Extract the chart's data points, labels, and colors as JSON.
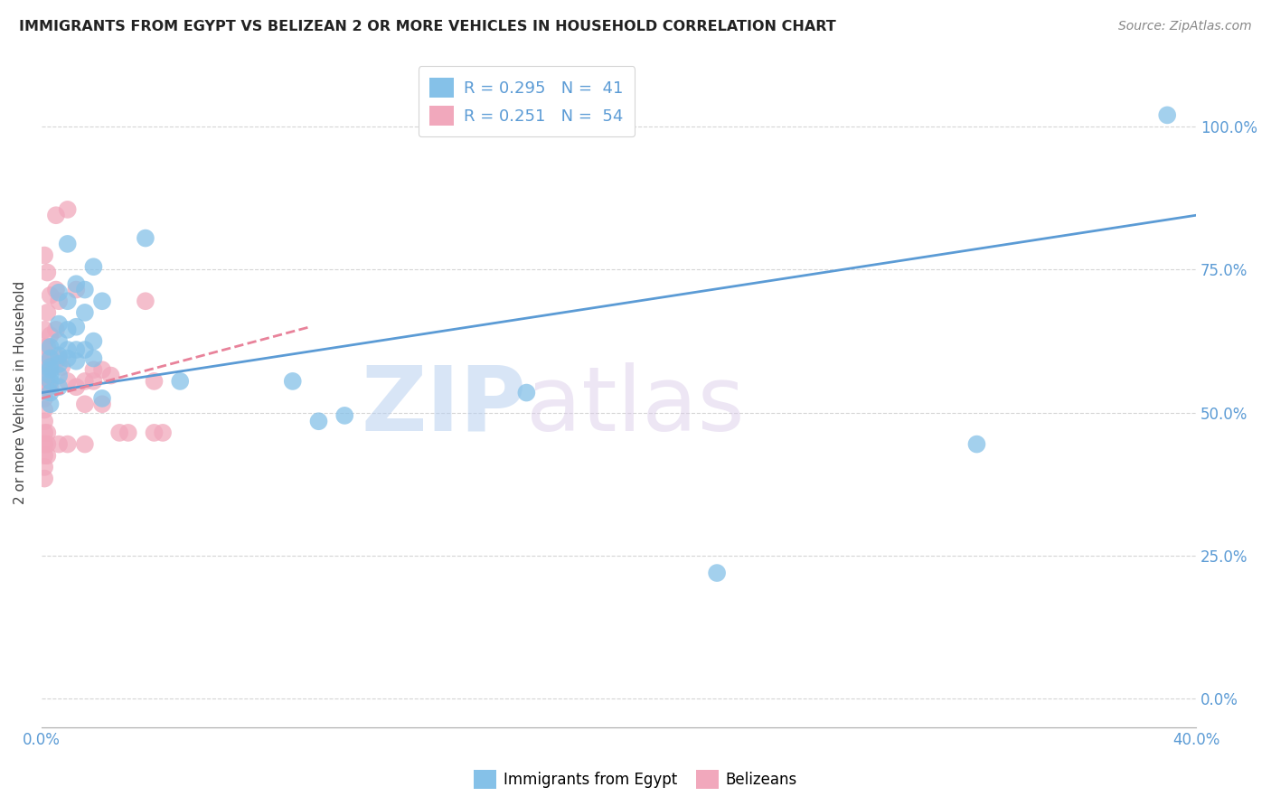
{
  "title": "IMMIGRANTS FROM EGYPT VS BELIZEAN 2 OR MORE VEHICLES IN HOUSEHOLD CORRELATION CHART",
  "source": "Source: ZipAtlas.com",
  "ylabel": "2 or more Vehicles in Household",
  "xlim": [
    0.0,
    0.4
  ],
  "ylim": [
    -0.05,
    1.12
  ],
  "ytick_values": [
    0.0,
    0.25,
    0.5,
    0.75,
    1.0
  ],
  "ytick_labels": [
    "0.0%",
    "25.0%",
    "50.0%",
    "75.0%",
    "100.0%"
  ],
  "xtick_values": [
    0.0,
    0.4
  ],
  "xtick_labels": [
    "0.0%",
    "40.0%"
  ],
  "color_blue": "#85C1E8",
  "color_pink": "#F1A8BC",
  "color_blue_line": "#5B9BD5",
  "color_pink_line": "#E8829A",
  "watermark_zip": "ZIP",
  "watermark_atlas": "atlas",
  "grid_color": "#D5D5D5",
  "background_color": "#FFFFFF",
  "tick_color": "#5B9BD5",
  "legend1_label": "R = 0.295   N =  41",
  "legend2_label": "R = 0.251   N =  54",
  "bottom_legend1": "Immigrants from Egypt",
  "bottom_legend2": "Belizeans",
  "blue_scatter": [
    [
      0.003,
      0.615
    ],
    [
      0.003,
      0.595
    ],
    [
      0.003,
      0.575
    ],
    [
      0.003,
      0.555
    ],
    [
      0.003,
      0.535
    ],
    [
      0.003,
      0.515
    ],
    [
      0.003,
      0.58
    ],
    [
      0.003,
      0.565
    ],
    [
      0.006,
      0.71
    ],
    [
      0.006,
      0.655
    ],
    [
      0.006,
      0.625
    ],
    [
      0.006,
      0.6
    ],
    [
      0.006,
      0.585
    ],
    [
      0.006,
      0.565
    ],
    [
      0.006,
      0.545
    ],
    [
      0.009,
      0.795
    ],
    [
      0.009,
      0.695
    ],
    [
      0.009,
      0.645
    ],
    [
      0.009,
      0.61
    ],
    [
      0.009,
      0.595
    ],
    [
      0.012,
      0.725
    ],
    [
      0.012,
      0.65
    ],
    [
      0.012,
      0.61
    ],
    [
      0.012,
      0.59
    ],
    [
      0.015,
      0.715
    ],
    [
      0.015,
      0.675
    ],
    [
      0.015,
      0.61
    ],
    [
      0.018,
      0.755
    ],
    [
      0.018,
      0.625
    ],
    [
      0.018,
      0.595
    ],
    [
      0.021,
      0.695
    ],
    [
      0.021,
      0.525
    ],
    [
      0.036,
      0.805
    ],
    [
      0.048,
      0.555
    ],
    [
      0.087,
      0.555
    ],
    [
      0.096,
      0.485
    ],
    [
      0.105,
      0.495
    ],
    [
      0.168,
      0.535
    ],
    [
      0.324,
      0.445
    ],
    [
      0.234,
      0.22
    ],
    [
      0.39,
      1.02
    ]
  ],
  "pink_scatter": [
    [
      0.001,
      0.775
    ],
    [
      0.001,
      0.645
    ],
    [
      0.001,
      0.615
    ],
    [
      0.001,
      0.585
    ],
    [
      0.001,
      0.565
    ],
    [
      0.001,
      0.545
    ],
    [
      0.001,
      0.525
    ],
    [
      0.001,
      0.505
    ],
    [
      0.001,
      0.485
    ],
    [
      0.001,
      0.465
    ],
    [
      0.001,
      0.445
    ],
    [
      0.001,
      0.425
    ],
    [
      0.001,
      0.405
    ],
    [
      0.001,
      0.385
    ],
    [
      0.001,
      0.445
    ],
    [
      0.002,
      0.745
    ],
    [
      0.002,
      0.675
    ],
    [
      0.002,
      0.615
    ],
    [
      0.002,
      0.585
    ],
    [
      0.002,
      0.565
    ],
    [
      0.002,
      0.545
    ],
    [
      0.002,
      0.465
    ],
    [
      0.002,
      0.445
    ],
    [
      0.002,
      0.425
    ],
    [
      0.003,
      0.705
    ],
    [
      0.003,
      0.635
    ],
    [
      0.003,
      0.595
    ],
    [
      0.003,
      0.545
    ],
    [
      0.005,
      0.845
    ],
    [
      0.005,
      0.715
    ],
    [
      0.005,
      0.645
    ],
    [
      0.006,
      0.695
    ],
    [
      0.006,
      0.595
    ],
    [
      0.007,
      0.58
    ],
    [
      0.009,
      0.855
    ],
    [
      0.009,
      0.555
    ],
    [
      0.012,
      0.715
    ],
    [
      0.012,
      0.545
    ],
    [
      0.015,
      0.555
    ],
    [
      0.015,
      0.515
    ],
    [
      0.018,
      0.575
    ],
    [
      0.018,
      0.555
    ],
    [
      0.021,
      0.575
    ],
    [
      0.021,
      0.515
    ],
    [
      0.024,
      0.565
    ],
    [
      0.027,
      0.465
    ],
    [
      0.03,
      0.465
    ],
    [
      0.036,
      0.695
    ],
    [
      0.039,
      0.555
    ],
    [
      0.039,
      0.465
    ],
    [
      0.042,
      0.465
    ],
    [
      0.006,
      0.445
    ],
    [
      0.009,
      0.445
    ],
    [
      0.015,
      0.445
    ]
  ],
  "blue_line_x": [
    0.0,
    0.4
  ],
  "blue_line_y": [
    0.535,
    0.845
  ],
  "pink_line_x": [
    0.0,
    0.093
  ],
  "pink_line_y": [
    0.525,
    0.65
  ]
}
